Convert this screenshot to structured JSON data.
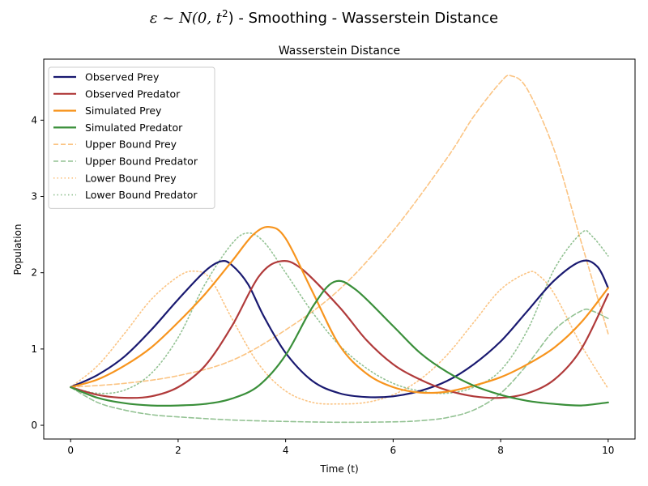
{
  "figure": {
    "suptitle_prefix": "ε ~ N(0, t",
    "suptitle_suffix": ") - Smoothing - Wasserstein Distance"
  },
  "chart_data": {
    "type": "line",
    "title": "Wasserstein Distance",
    "xlabel": "Time (t)",
    "ylabel": "Population",
    "xlim": [
      -0.5,
      10.5
    ],
    "ylim": [
      -0.18,
      4.8
    ],
    "xticks": [
      "0",
      "2",
      "4",
      "6",
      "8",
      "10"
    ],
    "yticks": [
      "0",
      "1",
      "2",
      "3",
      "4"
    ],
    "grid": false,
    "legend_position": "top-left",
    "series": [
      {
        "name": "Observed Prey",
        "color": "#191970",
        "style": "solid",
        "points": [
          [
            0,
            0.5
          ],
          [
            0.5,
            0.66
          ],
          [
            1,
            0.9
          ],
          [
            1.5,
            1.25
          ],
          [
            2,
            1.65
          ],
          [
            2.5,
            2.02
          ],
          [
            2.8,
            2.15
          ],
          [
            3,
            2.1
          ],
          [
            3.3,
            1.85
          ],
          [
            3.6,
            1.42
          ],
          [
            4,
            0.95
          ],
          [
            4.5,
            0.58
          ],
          [
            5,
            0.42
          ],
          [
            5.5,
            0.37
          ],
          [
            6,
            0.38
          ],
          [
            6.5,
            0.45
          ],
          [
            7,
            0.58
          ],
          [
            7.5,
            0.8
          ],
          [
            8,
            1.1
          ],
          [
            8.5,
            1.5
          ],
          [
            9,
            1.9
          ],
          [
            9.5,
            2.15
          ],
          [
            9.8,
            2.08
          ],
          [
            10,
            1.8
          ]
        ]
      },
      {
        "name": "Observed Predator",
        "color": "#b03a3a",
        "style": "solid",
        "points": [
          [
            0,
            0.5
          ],
          [
            0.5,
            0.4
          ],
          [
            1,
            0.36
          ],
          [
            1.5,
            0.38
          ],
          [
            2,
            0.5
          ],
          [
            2.5,
            0.78
          ],
          [
            3,
            1.3
          ],
          [
            3.5,
            1.95
          ],
          [
            3.9,
            2.15
          ],
          [
            4.3,
            2.05
          ],
          [
            5,
            1.55
          ],
          [
            5.5,
            1.12
          ],
          [
            6,
            0.8
          ],
          [
            6.5,
            0.6
          ],
          [
            7,
            0.46
          ],
          [
            7.5,
            0.38
          ],
          [
            8,
            0.36
          ],
          [
            8.5,
            0.42
          ],
          [
            9,
            0.6
          ],
          [
            9.5,
            1.0
          ],
          [
            10,
            1.72
          ]
        ]
      },
      {
        "name": "Simulated Prey",
        "color": "#f7941d",
        "style": "solid",
        "points": [
          [
            0,
            0.5
          ],
          [
            0.5,
            0.6
          ],
          [
            1,
            0.78
          ],
          [
            1.5,
            1.02
          ],
          [
            2,
            1.35
          ],
          [
            2.5,
            1.72
          ],
          [
            3,
            2.15
          ],
          [
            3.4,
            2.5
          ],
          [
            3.7,
            2.6
          ],
          [
            4,
            2.45
          ],
          [
            4.5,
            1.75
          ],
          [
            5,
            1.05
          ],
          [
            5.5,
            0.68
          ],
          [
            6,
            0.5
          ],
          [
            6.5,
            0.43
          ],
          [
            7,
            0.44
          ],
          [
            7.5,
            0.52
          ],
          [
            8,
            0.63
          ],
          [
            8.5,
            0.8
          ],
          [
            9,
            1.02
          ],
          [
            9.5,
            1.35
          ],
          [
            10,
            1.8
          ]
        ]
      },
      {
        "name": "Simulated Predator",
        "color": "#3a8f3a",
        "style": "solid",
        "points": [
          [
            0,
            0.5
          ],
          [
            0.5,
            0.36
          ],
          [
            1,
            0.29
          ],
          [
            1.5,
            0.26
          ],
          [
            2,
            0.26
          ],
          [
            2.5,
            0.28
          ],
          [
            3,
            0.35
          ],
          [
            3.5,
            0.52
          ],
          [
            4,
            0.92
          ],
          [
            4.5,
            1.55
          ],
          [
            4.9,
            1.88
          ],
          [
            5.3,
            1.78
          ],
          [
            6,
            1.3
          ],
          [
            6.5,
            0.95
          ],
          [
            7,
            0.7
          ],
          [
            7.5,
            0.52
          ],
          [
            8,
            0.4
          ],
          [
            8.5,
            0.32
          ],
          [
            9,
            0.28
          ],
          [
            9.5,
            0.26
          ],
          [
            10,
            0.3
          ]
        ]
      },
      {
        "name": "Upper Bound Prey",
        "color": "#f7941d",
        "style": "dashed",
        "opacity": 0.55,
        "points": [
          [
            0,
            0.5
          ],
          [
            1,
            0.55
          ],
          [
            2,
            0.65
          ],
          [
            3,
            0.85
          ],
          [
            4,
            1.25
          ],
          [
            5,
            1.78
          ],
          [
            6,
            2.55
          ],
          [
            7,
            3.5
          ],
          [
            7.5,
            4.05
          ],
          [
            8,
            4.5
          ],
          [
            8.2,
            4.58
          ],
          [
            8.5,
            4.4
          ],
          [
            9,
            3.6
          ],
          [
            9.5,
            2.4
          ],
          [
            10,
            1.2
          ]
        ]
      },
      {
        "name": "Upper Bound Predator",
        "color": "#3a8f3a",
        "style": "dashed",
        "opacity": 0.55,
        "points": [
          [
            0,
            0.5
          ],
          [
            0.5,
            0.3
          ],
          [
            1,
            0.2
          ],
          [
            1.5,
            0.14
          ],
          [
            2,
            0.11
          ],
          [
            3,
            0.07
          ],
          [
            4,
            0.05
          ],
          [
            5,
            0.04
          ],
          [
            6,
            0.045
          ],
          [
            6.5,
            0.06
          ],
          [
            7,
            0.1
          ],
          [
            7.5,
            0.2
          ],
          [
            8,
            0.42
          ],
          [
            8.5,
            0.8
          ],
          [
            9,
            1.25
          ],
          [
            9.5,
            1.5
          ],
          [
            9.7,
            1.5
          ],
          [
            10,
            1.4
          ]
        ]
      },
      {
        "name": "Lower Bound Prey",
        "color": "#f7941d",
        "style": "dotted",
        "opacity": 0.55,
        "points": [
          [
            0,
            0.5
          ],
          [
            0.5,
            0.78
          ],
          [
            1,
            1.2
          ],
          [
            1.5,
            1.65
          ],
          [
            2,
            1.95
          ],
          [
            2.3,
            2.02
          ],
          [
            2.6,
            1.92
          ],
          [
            3,
            1.4
          ],
          [
            3.5,
            0.8
          ],
          [
            4,
            0.45
          ],
          [
            4.5,
            0.3
          ],
          [
            5,
            0.28
          ],
          [
            5.5,
            0.3
          ],
          [
            6,
            0.4
          ],
          [
            6.5,
            0.6
          ],
          [
            7,
            0.92
          ],
          [
            7.5,
            1.35
          ],
          [
            8,
            1.78
          ],
          [
            8.5,
            2.0
          ],
          [
            8.7,
            1.97
          ],
          [
            9,
            1.72
          ],
          [
            9.5,
            1.05
          ],
          [
            10,
            0.48
          ]
        ]
      },
      {
        "name": "Lower Bound Predator",
        "color": "#3a8f3a",
        "style": "dotted",
        "opacity": 0.55,
        "points": [
          [
            0,
            0.5
          ],
          [
            0.5,
            0.42
          ],
          [
            1,
            0.46
          ],
          [
            1.5,
            0.68
          ],
          [
            2,
            1.15
          ],
          [
            2.5,
            1.85
          ],
          [
            3,
            2.38
          ],
          [
            3.3,
            2.52
          ],
          [
            3.6,
            2.4
          ],
          [
            4,
            2.0
          ],
          [
            4.5,
            1.48
          ],
          [
            5,
            1.05
          ],
          [
            5.5,
            0.75
          ],
          [
            6,
            0.55
          ],
          [
            6.5,
            0.45
          ],
          [
            7,
            0.42
          ],
          [
            7.5,
            0.5
          ],
          [
            8,
            0.72
          ],
          [
            8.5,
            1.25
          ],
          [
            9,
            2.05
          ],
          [
            9.5,
            2.52
          ],
          [
            9.7,
            2.48
          ],
          [
            10,
            2.22
          ]
        ]
      }
    ]
  }
}
